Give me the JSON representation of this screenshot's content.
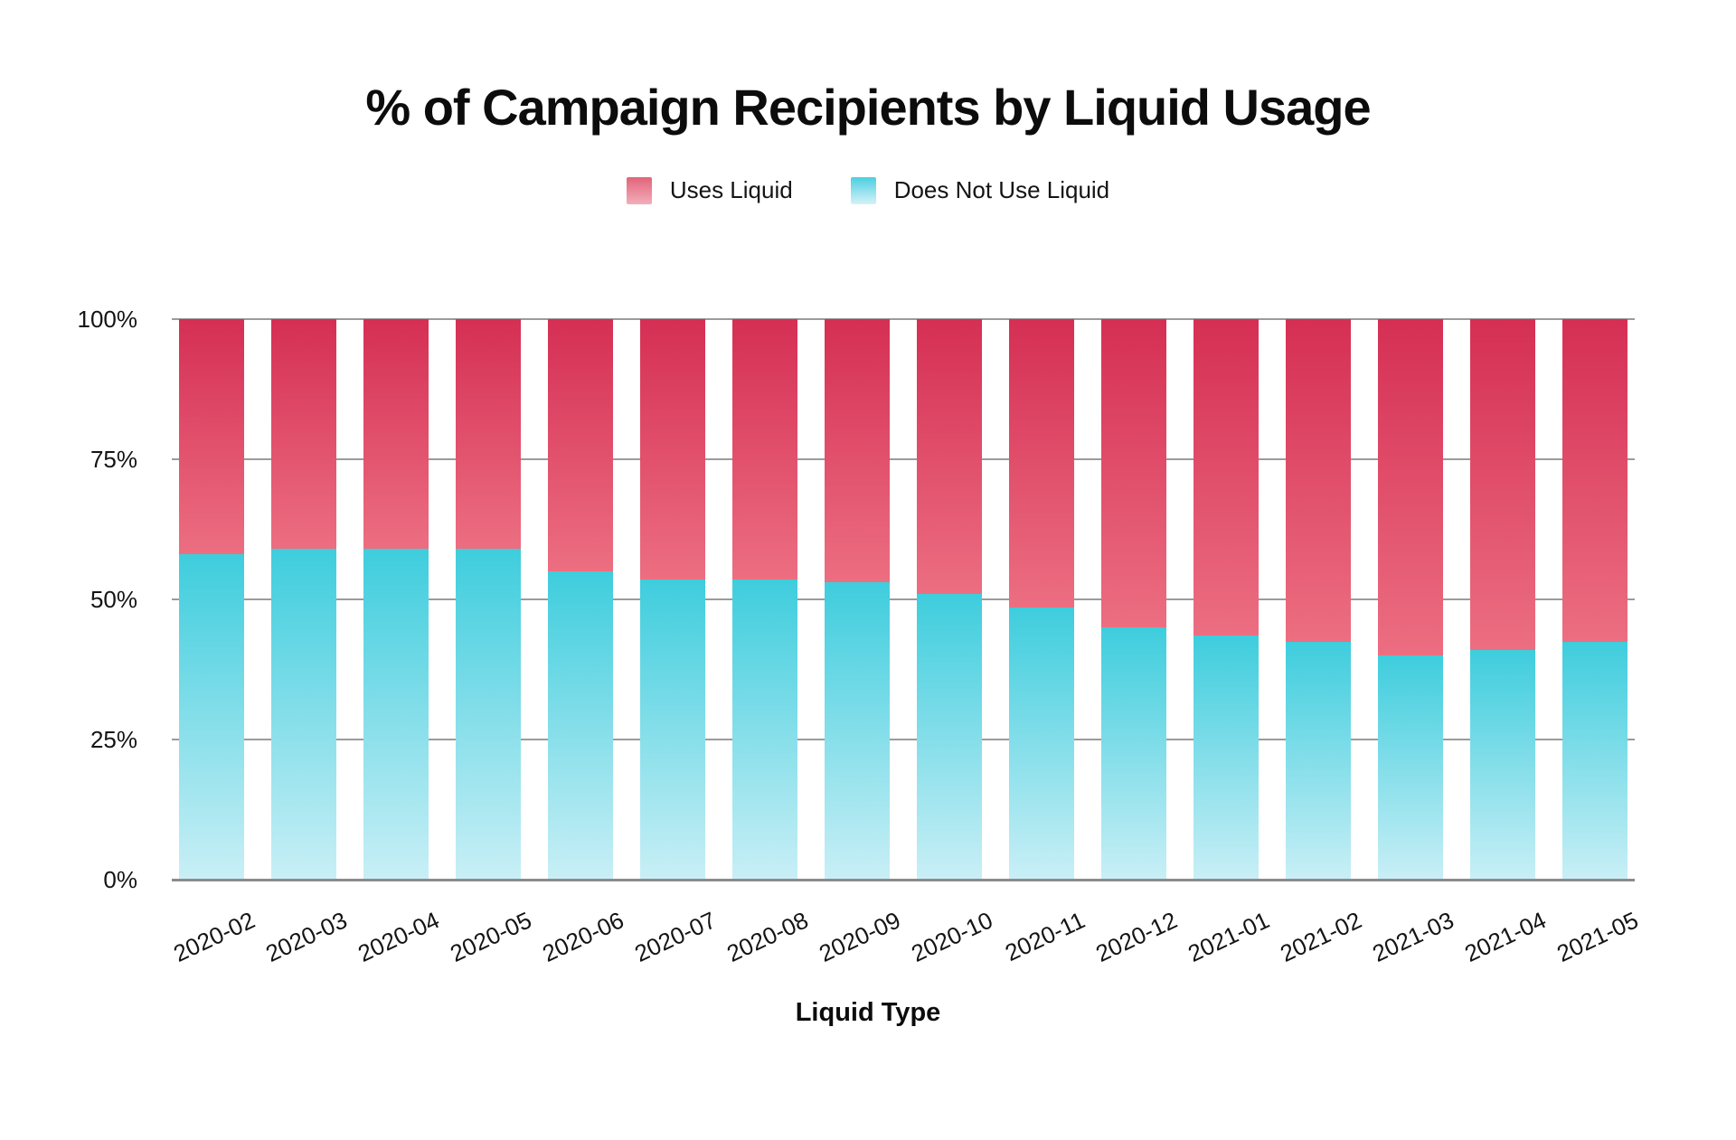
{
  "title": "% of Campaign Recipients by Liquid Usage",
  "legend": {
    "entries": [
      {
        "label": "Uses Liquid",
        "color_top": "#d52f54",
        "color_bottom": "#ec6e81"
      },
      {
        "label": "Does Not Use Liquid",
        "color_top": "#3ecddd",
        "color_bottom": "#c9eff6"
      }
    ]
  },
  "axis": {
    "x_title": "Liquid Type"
  },
  "colors": {
    "uses_liquid_top": "#d52f54",
    "uses_liquid_bottom": "#ec6e81",
    "does_not_use_top": "#3ecddd",
    "does_not_use_bottom": "#c9eff6",
    "gridline": "#9b9b9b",
    "baseline": "#8b8b8b",
    "text": "#111111",
    "background": "#ffffff"
  },
  "chart_data": {
    "type": "bar",
    "stacked": true,
    "title": "% of Campaign Recipients by Liquid Usage",
    "xlabel": "Liquid Type",
    "ylabel": "",
    "ylim": [
      0,
      100
    ],
    "grid": true,
    "legend_position": "top",
    "categories": [
      "2020-02",
      "2020-03",
      "2020-04",
      "2020-05",
      "2020-06",
      "2020-07",
      "2020-08",
      "2020-09",
      "2020-10",
      "2020-11",
      "2020-12",
      "2021-01",
      "2021-02",
      "2021-03",
      "2021-04",
      "2021-05"
    ],
    "series": [
      {
        "name": "Uses Liquid",
        "values": [
          42,
          41,
          41,
          41,
          45,
          46.5,
          46.5,
          47,
          49,
          51.5,
          55,
          56.5,
          57.5,
          60,
          59,
          57.5
        ]
      },
      {
        "name": "Does Not Use Liquid",
        "values": [
          58,
          59,
          59,
          59,
          55,
          53.5,
          53.5,
          53,
          51,
          48.5,
          45,
          43.5,
          42.5,
          40,
          41,
          42.5
        ]
      }
    ],
    "y_ticks": [
      {
        "label": "100%",
        "value": 100
      },
      {
        "label": "75%",
        "value": 75
      },
      {
        "label": "50%",
        "value": 50
      },
      {
        "label": "25%",
        "value": 25
      },
      {
        "label": "0%",
        "value": 0
      }
    ]
  }
}
